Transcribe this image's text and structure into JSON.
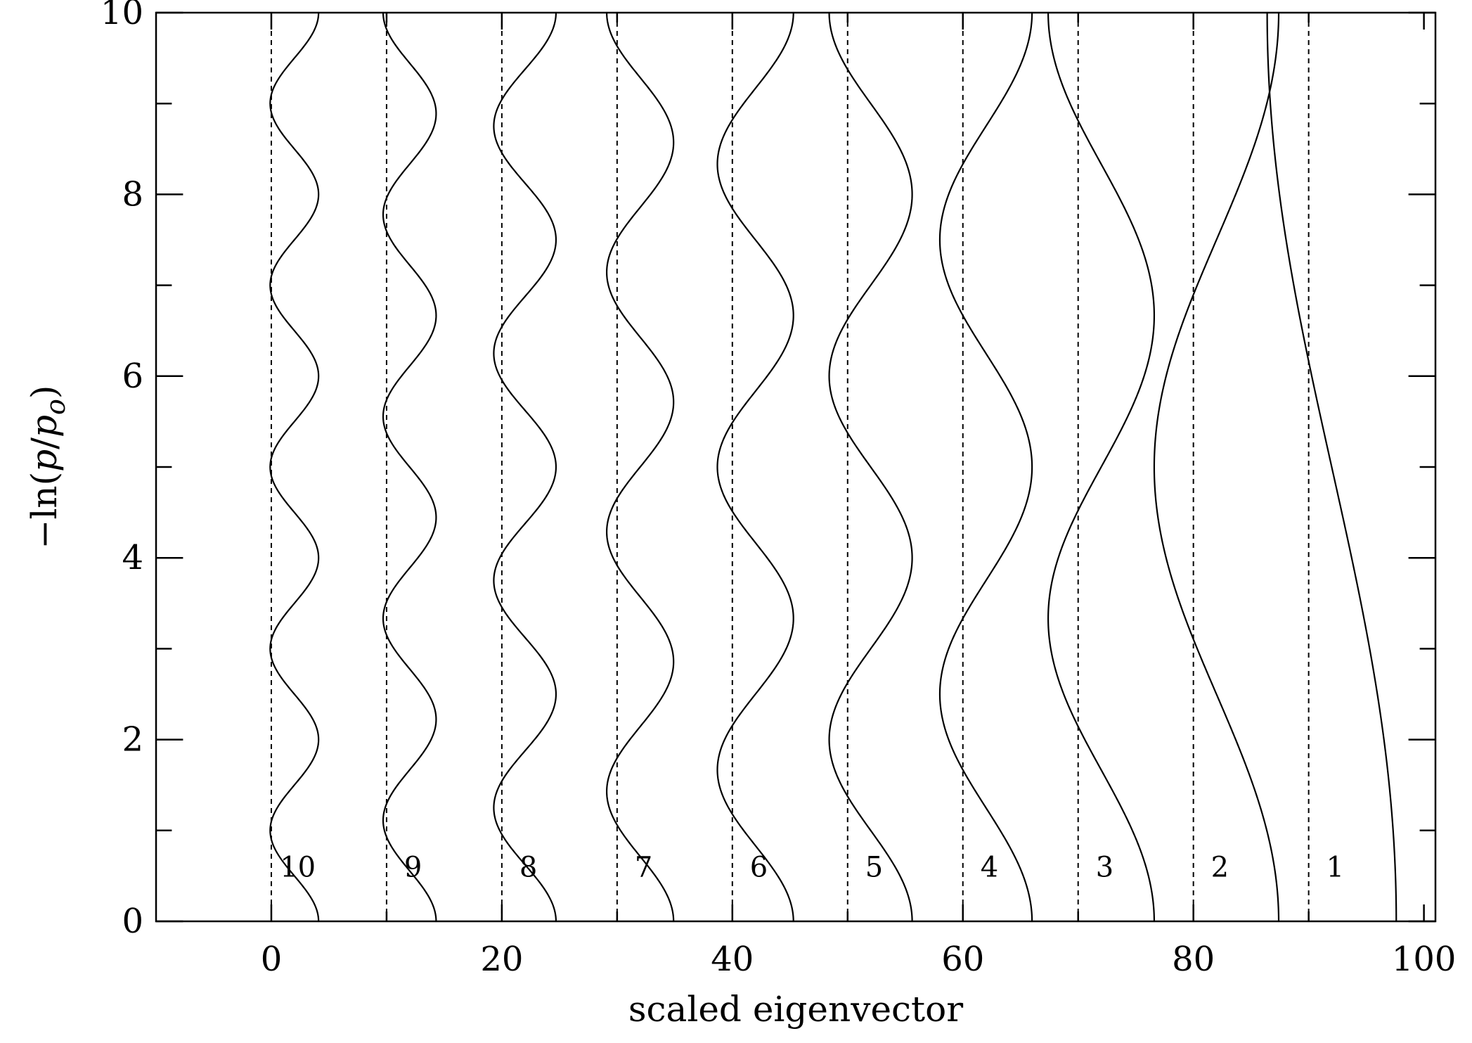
{
  "chart_data": {
    "type": "line",
    "title": "",
    "xlabel": "scaled eigenvector",
    "ylabel_parts": [
      "−ln(",
      "p",
      "/",
      "p",
      "o",
      ")"
    ],
    "xlim": [
      -10,
      101
    ],
    "ylim": [
      0,
      10
    ],
    "xticks_major": [
      0,
      20,
      40,
      60,
      80,
      100
    ],
    "xtick_labels": [
      "0",
      "20",
      "40",
      "60",
      "80",
      "100"
    ],
    "xticks_minor": [
      10,
      30,
      50,
      70,
      90
    ],
    "yticks_major": [
      0,
      2,
      4,
      6,
      8,
      10
    ],
    "ytick_labels": [
      "0",
      "2",
      "4",
      "6",
      "8",
      "10"
    ],
    "yticks_minor": [
      1,
      3,
      5,
      7,
      9
    ],
    "y_range": [
      0,
      10
    ],
    "series": [
      {
        "label": "1",
        "baseline": 90,
        "mode": 1,
        "amplitude": 5.6
      },
      {
        "label": "2",
        "baseline": 80,
        "mode": 2,
        "amplitude": 5.4
      },
      {
        "label": "3",
        "baseline": 70,
        "mode": 3,
        "amplitude": 4.6
      },
      {
        "label": "4",
        "baseline": 60,
        "mode": 4,
        "amplitude": 4.0
      },
      {
        "label": "5",
        "baseline": 50,
        "mode": 5,
        "amplitude": 3.6
      },
      {
        "label": "6",
        "baseline": 40,
        "mode": 6,
        "amplitude": 3.3
      },
      {
        "label": "7",
        "baseline": 30,
        "mode": 7,
        "amplitude": 2.9
      },
      {
        "label": "8",
        "baseline": 20,
        "mode": 8,
        "amplitude": 2.7
      },
      {
        "label": "9",
        "baseline": 10,
        "mode": 9,
        "amplitude": 2.3
      },
      {
        "label": "10",
        "baseline": 0,
        "mode": 10,
        "amplitude": 2.1
      }
    ],
    "label_y": 0.6,
    "colors": {
      "line": "#000000",
      "background": "#ffffff"
    }
  }
}
